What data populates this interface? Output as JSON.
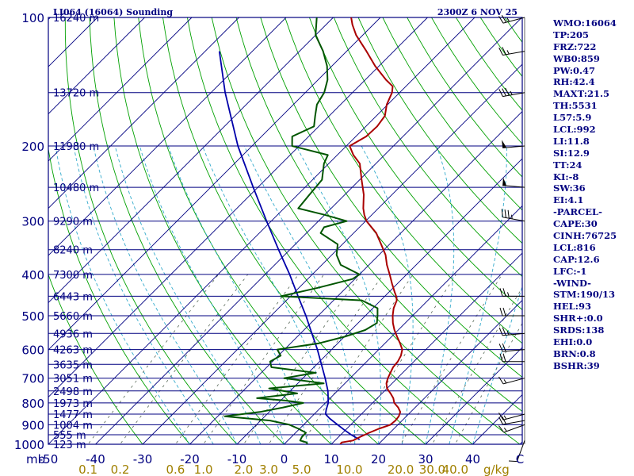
{
  "header": {
    "station": "LI064 (16064) Sounding",
    "time": "2300Z  6 NOV 25"
  },
  "stats": [
    "WMO:16064",
    "TP:205",
    "FRZ:722",
    "WB0:859",
    "PW:0.47",
    "RH:42.4",
    "MAXT:21.5",
    "TH:5531",
    "L57:5.9",
    "LCL:992",
    "LI:11.8",
    "SI:12.9",
    "TT:24",
    "KI:-8",
    "SW:36",
    "EI:4.1",
    "-PARCEL-",
    "CAPE:30",
    "CINH:76725",
    "LCL:816",
    "CAP:12.6",
    "LFC:-1",
    "-WIND-",
    "STM:190/13",
    "HEL:93",
    "SHR+:0.0",
    "SRDS:138",
    "EHI:0.0",
    "BRN:0.8",
    "BSHR:39"
  ],
  "colors": {
    "frame": "#000080",
    "isobar": "#000080",
    "isotherm": "#000080",
    "dry_adiabat": "#00a000",
    "moist_adiabat": "#33aacc",
    "mixing_ratio": "#556655",
    "temperature": "#aa0000",
    "dewpoint": "#005500",
    "parcel": "#0000aa",
    "text": "#000080",
    "mixing_label": "#a08000"
  },
  "chart_data": {
    "type": "line",
    "diagram": "skew-T log-P",
    "pressure_label": "mb",
    "pressure_range": [
      100,
      1000
    ],
    "temperature_range": [
      -50,
      50
    ],
    "pressure_levels": [
      100,
      200,
      300,
      400,
      500,
      600,
      700,
      800,
      900,
      1000
    ],
    "pressure_tick_labels": [
      "100",
      "200",
      "300",
      "400",
      "500",
      "600",
      "700",
      "800",
      "900",
      "1000"
    ],
    "temperature_ticks": [
      -50,
      -40,
      -30,
      -20,
      -10,
      0,
      10,
      20,
      30,
      40,
      50
    ],
    "temperature_tick_labels": [
      "-50",
      "-40",
      "-30",
      "-20",
      "-10",
      "0",
      "10",
      "20",
      "30",
      "40",
      "C"
    ],
    "height_levels": [
      {
        "p": 100,
        "label": "16240 m"
      },
      {
        "p": 150,
        "label": "13720 m"
      },
      {
        "p": 200,
        "label": "11980 m"
      },
      {
        "p": 250,
        "label": "10480 m"
      },
      {
        "p": 300,
        "label": "9290 m"
      },
      {
        "p": 350,
        "label": "8240 m"
      },
      {
        "p": 400,
        "label": "7300 m"
      },
      {
        "p": 450,
        "label": "6443 m"
      },
      {
        "p": 500,
        "label": "5660 m"
      },
      {
        "p": 550,
        "label": "4936 m"
      },
      {
        "p": 600,
        "label": "4263 m"
      },
      {
        "p": 650,
        "label": "3635 m"
      },
      {
        "p": 700,
        "label": "3051 m"
      },
      {
        "p": 750,
        "label": "2498 m"
      },
      {
        "p": 800,
        "label": "1973 m"
      },
      {
        "p": 850,
        "label": "1477 m"
      },
      {
        "p": 900,
        "label": "1004 m"
      },
      {
        "p": 950,
        "label": "555 m"
      },
      {
        "p": 1000,
        "label": "123 m"
      }
    ],
    "mixing_ratio_labels": [
      "0.1",
      "0.2",
      "0.6",
      "1.0",
      "2.0",
      "3.0",
      "5.0",
      "10.0",
      "20.0",
      "30.0",
      "40.0"
    ],
    "mixing_ratio_values": [
      0.1,
      0.2,
      0.6,
      1.0,
      2.0,
      3.0,
      5.0,
      10.0,
      20.0,
      30.0,
      40.0
    ],
    "mixing_ratio_unit": "g/kg",
    "temperature_profile": [
      [
        1000,
        11.9
      ],
      [
        990,
        11.8
      ],
      [
        980,
        13.8
      ],
      [
        960,
        14.6
      ],
      [
        940,
        15.6
      ],
      [
        920,
        16.8
      ],
      [
        900,
        18.4
      ],
      [
        880,
        18.6
      ],
      [
        860,
        18.4
      ],
      [
        840,
        17.8
      ],
      [
        820,
        16.4
      ],
      [
        800,
        14.6
      ],
      [
        780,
        13.4
      ],
      [
        760,
        11.8
      ],
      [
        740,
        10.0
      ],
      [
        720,
        8.8
      ],
      [
        700,
        8.0
      ],
      [
        680,
        7.4
      ],
      [
        660,
        6.8
      ],
      [
        640,
        6.6
      ],
      [
        620,
        6.0
      ],
      [
        600,
        5.0
      ],
      [
        580,
        3.2
      ],
      [
        560,
        1.2
      ],
      [
        540,
        -0.8
      ],
      [
        520,
        -2.6
      ],
      [
        500,
        -4.2
      ],
      [
        480,
        -5.6
      ],
      [
        460,
        -6.6
      ],
      [
        450,
        -7.6
      ],
      [
        440,
        -8.8
      ],
      [
        420,
        -11.2
      ],
      [
        400,
        -13.6
      ],
      [
        380,
        -16.2
      ],
      [
        360,
        -18.6
      ],
      [
        340,
        -21.8
      ],
      [
        320,
        -25.2
      ],
      [
        300,
        -29.8
      ],
      [
        290,
        -31.6
      ],
      [
        280,
        -33.2
      ],
      [
        260,
        -36.0
      ],
      [
        240,
        -39.6
      ],
      [
        220,
        -43.4
      ],
      [
        210,
        -46.6
      ],
      [
        200,
        -49.3
      ],
      [
        190,
        -47.8
      ],
      [
        180,
        -47.6
      ],
      [
        170,
        -48.2
      ],
      [
        160,
        -50.2
      ],
      [
        150,
        -51.6
      ],
      [
        145,
        -52.8
      ],
      [
        140,
        -55.6
      ],
      [
        130,
        -60.8
      ],
      [
        120,
        -65.8
      ],
      [
        110,
        -71.4
      ],
      [
        104,
        -74.4
      ],
      [
        100,
        -76.2
      ]
    ],
    "dewpoint_profile": [
      [
        1000,
        4.9
      ],
      [
        990,
        4.4
      ],
      [
        980,
        2.6
      ],
      [
        960,
        2.2
      ],
      [
        940,
        2.2
      ],
      [
        920,
        -0.2
      ],
      [
        900,
        -3.0
      ],
      [
        880,
        -8.0
      ],
      [
        860,
        -18.5
      ],
      [
        840,
        -12.0
      ],
      [
        820,
        -8.0
      ],
      [
        800,
        -4.7
      ],
      [
        790,
        -9.0
      ],
      [
        780,
        -15.5
      ],
      [
        760,
        -8.0
      ],
      [
        740,
        -15.0
      ],
      [
        720,
        -4.5
      ],
      [
        700,
        -14.0
      ],
      [
        680,
        -8.5
      ],
      [
        660,
        -19.0
      ],
      [
        640,
        -20.5
      ],
      [
        620,
        -19.5
      ],
      [
        600,
        -21.5
      ],
      [
        580,
        -14.0
      ],
      [
        560,
        -10.0
      ],
      [
        540,
        -7.0
      ],
      [
        520,
        -6.0
      ],
      [
        500,
        -7.4
      ],
      [
        480,
        -9.0
      ],
      [
        460,
        -14.0
      ],
      [
        450,
        -32.0
      ],
      [
        430,
        -26.0
      ],
      [
        410,
        -20.5
      ],
      [
        400,
        -20.0
      ],
      [
        380,
        -26.0
      ],
      [
        360,
        -29.0
      ],
      [
        340,
        -31.0
      ],
      [
        320,
        -37.0
      ],
      [
        310,
        -37.5
      ],
      [
        300,
        -34.0
      ],
      [
        290,
        -40.0
      ],
      [
        280,
        -47.0
      ],
      [
        260,
        -47.5
      ],
      [
        240,
        -48.0
      ],
      [
        220,
        -51.0
      ],
      [
        210,
        -52.0
      ],
      [
        200,
        -61.5
      ],
      [
        190,
        -63.5
      ],
      [
        180,
        -61.0
      ],
      [
        170,
        -63.0
      ],
      [
        160,
        -65.0
      ],
      [
        150,
        -66.0
      ],
      [
        140,
        -68.0
      ],
      [
        130,
        -71.0
      ],
      [
        120,
        -75.0
      ],
      [
        110,
        -80.0
      ],
      [
        100,
        -83.5
      ]
    ],
    "parcel_profile": [
      [
        975,
        15.0
      ],
      [
        950,
        12.2
      ],
      [
        925,
        9.7
      ],
      [
        900,
        7.2
      ],
      [
        870,
        4.2
      ],
      [
        850,
        2.4
      ],
      [
        830,
        1.6
      ],
      [
        800,
        0.6
      ],
      [
        750,
        -2.0
      ],
      [
        700,
        -5.3
      ],
      [
        650,
        -9.0
      ],
      [
        600,
        -13.0
      ],
      [
        550,
        -17.6
      ],
      [
        500,
        -22.6
      ],
      [
        450,
        -28.4
      ],
      [
        400,
        -34.8
      ],
      [
        350,
        -42.4
      ],
      [
        300,
        -51.0
      ],
      [
        250,
        -61.0
      ],
      [
        200,
        -73.0
      ],
      [
        150,
        -87.0
      ],
      [
        120,
        -97.0
      ]
    ],
    "wind_barbs": [
      [
        980,
        200,
        10
      ],
      [
        900,
        250,
        15
      ],
      [
        880,
        260,
        20
      ],
      [
        850,
        255,
        15
      ],
      [
        700,
        255,
        15
      ],
      [
        640,
        270,
        20
      ],
      [
        600,
        265,
        20
      ],
      [
        550,
        265,
        25
      ],
      [
        500,
        270,
        20
      ],
      [
        450,
        270,
        25
      ],
      [
        300,
        280,
        35
      ],
      [
        250,
        275,
        50
      ],
      [
        200,
        265,
        50
      ],
      [
        150,
        260,
        35
      ],
      [
        120,
        260,
        25
      ],
      [
        100,
        255,
        25
      ]
    ]
  }
}
